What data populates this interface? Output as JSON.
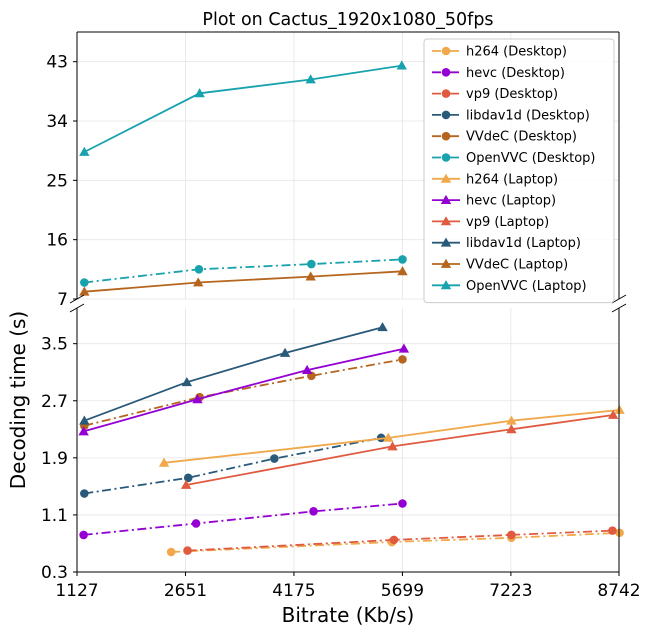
{
  "chart_data": {
    "type": "line",
    "title": "Plot on Cactus_1920x1080_50fps",
    "xlabel": "Bitrate (Kb/s)",
    "ylabel": "Decoding time (s)",
    "x_ticks": [
      1127,
      2651,
      4175,
      5699,
      7223,
      8742
    ],
    "xlim": [
      1127,
      8742
    ],
    "grid": true,
    "legend_position": "top-right",
    "panels": {
      "upper": {
        "ylim": [
          7,
          47.5
        ],
        "y_ticks": [
          7,
          16,
          25,
          34,
          43
        ]
      },
      "lower": {
        "ylim": [
          0.3,
          4.0
        ],
        "y_ticks": [
          0.3,
          1.1,
          1.9,
          2.7,
          3.5
        ]
      }
    },
    "series": [
      {
        "name": "h264 (Desktop)",
        "color": "#f0a84a",
        "marker": "circle",
        "line": "dashdot",
        "panel": "lower",
        "x": [
          2450,
          5550,
          7230,
          8750
        ],
        "y": [
          0.58,
          0.72,
          0.78,
          0.85
        ]
      },
      {
        "name": "hevc (Desktop)",
        "color": "#9400d3",
        "marker": "circle",
        "line": "dashdot",
        "panel": "lower",
        "x": [
          1220,
          2800,
          4450,
          5700
        ],
        "y": [
          0.82,
          0.98,
          1.15,
          1.26
        ]
      },
      {
        "name": "vp9 (Desktop)",
        "color": "#e05a40",
        "marker": "circle",
        "line": "dashdot",
        "panel": "lower",
        "x": [
          2680,
          5580,
          7230,
          8650
        ],
        "y": [
          0.6,
          0.75,
          0.82,
          0.88
        ]
      },
      {
        "name": "libdav1d (Desktop)",
        "color": "#2a5a7a",
        "marker": "circle",
        "line": "dashdot",
        "panel": "lower",
        "x": [
          1230,
          2690,
          3900,
          5400
        ],
        "y": [
          1.4,
          1.62,
          1.89,
          2.18
        ]
      },
      {
        "name": "VVdeC (Desktop)",
        "color": "#b5651d",
        "marker": "circle",
        "line": "dashdot",
        "panel": "lower",
        "x": [
          1230,
          2850,
          4420,
          5700
        ],
        "y": [
          2.35,
          2.75,
          3.05,
          3.28
        ]
      },
      {
        "name": "OpenVVC (Desktop)",
        "color": "#17a2ad",
        "marker": "circle",
        "line": "dashdot",
        "panel": "upper",
        "x": [
          1230,
          2840,
          4420,
          5700
        ],
        "y": [
          9.5,
          11.5,
          12.3,
          13.0
        ]
      },
      {
        "name": "h264 (Laptop)",
        "color": "#f0a84a",
        "marker": "triangle",
        "line": "solid",
        "panel": "lower",
        "x": [
          2350,
          5500,
          7230,
          8750
        ],
        "y": [
          1.83,
          2.18,
          2.42,
          2.57
        ]
      },
      {
        "name": "hevc (Laptop)",
        "color": "#9400d3",
        "marker": "triangle",
        "line": "solid",
        "panel": "lower",
        "x": [
          1220,
          2820,
          4360,
          5720
        ],
        "y": [
          2.27,
          2.72,
          3.13,
          3.43
        ]
      },
      {
        "name": "vp9 (Laptop)",
        "color": "#e05a40",
        "marker": "triangle",
        "line": "solid",
        "panel": "lower",
        "x": [
          2660,
          5560,
          7230,
          8660
        ],
        "y": [
          1.52,
          2.06,
          2.3,
          2.5
        ]
      },
      {
        "name": "libdav1d (Laptop)",
        "color": "#2a5a7a",
        "marker": "triangle",
        "line": "solid",
        "panel": "lower",
        "x": [
          1230,
          2670,
          4050,
          5420
        ],
        "y": [
          2.42,
          2.96,
          3.37,
          3.73
        ]
      },
      {
        "name": "VVdeC (Laptop)",
        "color": "#b5651d",
        "marker": "triangle",
        "line": "solid",
        "panel": "upper",
        "x": [
          1230,
          2830,
          4410,
          5700
        ],
        "y": [
          8.1,
          9.5,
          10.4,
          11.2
        ]
      },
      {
        "name": "OpenVVC (Laptop)",
        "color": "#17a2ad",
        "marker": "triangle",
        "line": "solid",
        "panel": "upper",
        "x": [
          1230,
          2850,
          4410,
          5690
        ],
        "y": [
          29.3,
          38.2,
          40.3,
          42.4
        ]
      }
    ]
  }
}
